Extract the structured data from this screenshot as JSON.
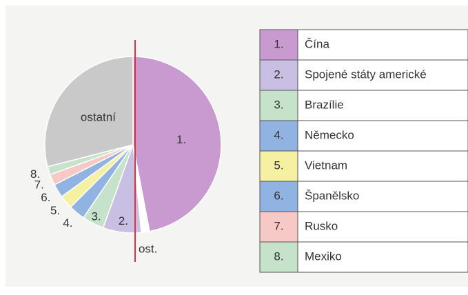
{
  "chart_data": {
    "type": "pie",
    "categories": [
      "1.",
      "ost.",
      "2.",
      "3.",
      "4.",
      "5.",
      "6.",
      "7.",
      "8.",
      "ostatní"
    ],
    "names": [
      "Čína",
      null,
      "Spojené státy americké",
      "Brazílie",
      "Německo",
      "Vietnam",
      "Španělsko",
      "Rusko",
      "Mexiko",
      null
    ],
    "values": [
      47,
      1.5,
      7,
      4,
      3,
      2.5,
      2.5,
      2,
      1.5,
      29
    ],
    "colors": [
      "#c99ad0",
      "#ffffff",
      "#c9bfe2",
      "#c6e2cb",
      "#90b3e2",
      "#f6f1a2",
      "#90b3e2",
      "#f6c8c6",
      "#c6e2cb",
      "#c9c9c9"
    ]
  }
}
